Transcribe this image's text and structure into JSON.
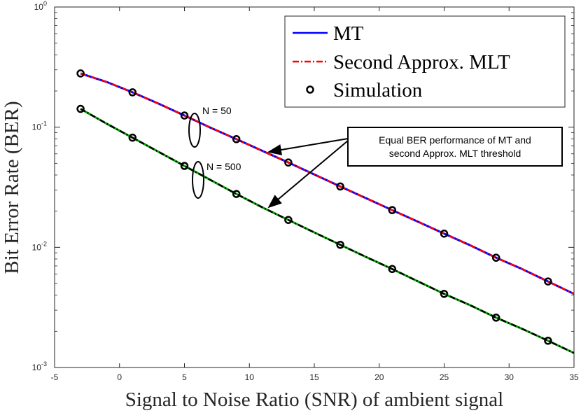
{
  "chart_data": {
    "type": "line",
    "title": "",
    "xlabel": "Signal to Noise Ratio (SNR) of ambient signal",
    "ylabel": "Bit Error Rate (BER)",
    "xlim": [
      -5,
      35
    ],
    "ylim": [
      0.001,
      1
    ],
    "yscale": "log",
    "xticks": [
      -5,
      0,
      5,
      10,
      15,
      20,
      25,
      30,
      35
    ],
    "yticks": [
      {
        "value": 1,
        "base": "10",
        "exp": "0"
      },
      {
        "value": 0.1,
        "base": "10",
        "exp": "-1"
      },
      {
        "value": 0.01,
        "base": "10",
        "exp": "-2"
      },
      {
        "value": 0.001,
        "base": "10",
        "exp": "-3"
      }
    ],
    "grid": false,
    "legend": [
      {
        "label": "MT",
        "style": "solid",
        "color": "#0000ff"
      },
      {
        "label": "Second Approx. MLT",
        "style": "dashdot",
        "color": "#ff0000"
      },
      {
        "label": "Simulation",
        "style": "marker",
        "color": "#000000"
      }
    ],
    "legend_position": "top-right",
    "series": [
      {
        "group": "N = 50",
        "name": "MT",
        "color": "#0000ff",
        "x": [
          -3,
          -1,
          1,
          3,
          5,
          7,
          9,
          11,
          13,
          15,
          17,
          19,
          21,
          23,
          25,
          27,
          29,
          31,
          33,
          35
        ],
        "y": [
          0.28,
          0.238,
          0.195,
          0.157,
          0.125,
          0.099,
          0.0795,
          0.0635,
          0.0508,
          0.0404,
          0.0321,
          0.0256,
          0.0204,
          0.0163,
          0.013,
          0.0104,
          0.0082,
          0.0066,
          0.0052,
          0.0041
        ]
      },
      {
        "group": "N = 50",
        "name": "Second Approx. MLT",
        "color": "#ff0000",
        "x": [
          -3,
          -1,
          1,
          3,
          5,
          7,
          9,
          11,
          13,
          15,
          17,
          19,
          21,
          23,
          25,
          27,
          29,
          31,
          33,
          35
        ],
        "y": [
          0.28,
          0.238,
          0.195,
          0.157,
          0.125,
          0.099,
          0.0795,
          0.0635,
          0.0508,
          0.0404,
          0.0321,
          0.0256,
          0.0204,
          0.0163,
          0.013,
          0.0104,
          0.0082,
          0.0066,
          0.0052,
          0.0041
        ]
      },
      {
        "group": "N = 50",
        "name": "Simulation",
        "color": "#000000",
        "x": [
          -3,
          1,
          5,
          9,
          13,
          17,
          21,
          25,
          29,
          33
        ],
        "y": [
          0.28,
          0.195,
          0.125,
          0.0795,
          0.0508,
          0.0321,
          0.0204,
          0.013,
          0.0082,
          0.0052
        ]
      },
      {
        "group": "N = 500",
        "name": "MT",
        "color": "#00aa00",
        "x": [
          -3,
          -1,
          1,
          3,
          5,
          7,
          9,
          11,
          13,
          15,
          17,
          19,
          21,
          23,
          25,
          27,
          29,
          31,
          33,
          35
        ],
        "y": [
          0.142,
          0.107,
          0.0818,
          0.0624,
          0.0476,
          0.0364,
          0.0278,
          0.0215,
          0.0169,
          0.0133,
          0.0105,
          0.0083,
          0.0066,
          0.0052,
          0.0041,
          0.0033,
          0.0026,
          0.0021,
          0.00167,
          0.00132
        ]
      },
      {
        "group": "N = 500",
        "name": "Second Approx. MLT",
        "color": "#000000",
        "x": [
          -3,
          -1,
          1,
          3,
          5,
          7,
          9,
          11,
          13,
          15,
          17,
          19,
          21,
          23,
          25,
          27,
          29,
          31,
          33,
          35
        ],
        "y": [
          0.142,
          0.107,
          0.0818,
          0.0624,
          0.0476,
          0.0364,
          0.0278,
          0.0215,
          0.0169,
          0.0133,
          0.0105,
          0.0083,
          0.0066,
          0.0052,
          0.0041,
          0.0033,
          0.0026,
          0.0021,
          0.00167,
          0.00132
        ]
      },
      {
        "group": "N = 500",
        "name": "Simulation",
        "color": "#000000",
        "x": [
          -3,
          1,
          5,
          9,
          13,
          17,
          21,
          25,
          29,
          33
        ],
        "y": [
          0.142,
          0.0818,
          0.0476,
          0.0278,
          0.0169,
          0.0105,
          0.0066,
          0.0041,
          0.0026,
          0.00167
        ]
      }
    ],
    "annotations": {
      "n50_label": "N = 50",
      "n500_label": "N = 500",
      "box_line1": "Equal BER performance of MT and",
      "box_line2": "second Approx. MLT threshold"
    }
  }
}
